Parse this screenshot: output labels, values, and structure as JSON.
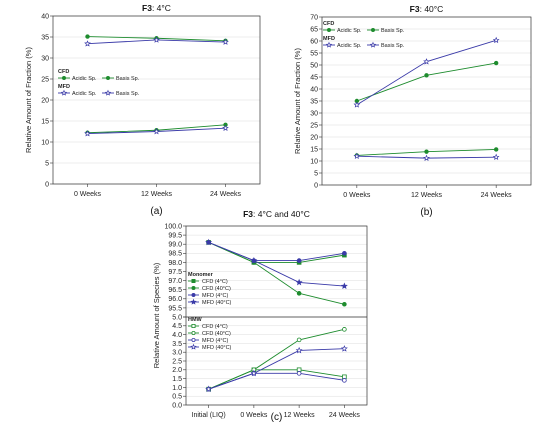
{
  "colors": {
    "green": "#1e8c2e",
    "blue": "#3a3aa8",
    "grid": "#dcdcdc",
    "light": "#aaaaaa"
  },
  "chart_data": [
    {
      "type": "line",
      "panel_label": "(a)",
      "title_bold": "F3",
      "title_rest": ": 4°C",
      "ylabel": "Relative Amount of Fraction (%)",
      "categories": [
        "0 Weeks",
        "12 Weeks",
        "24 Weeks"
      ],
      "ylim": [
        0,
        40
      ],
      "yticks": [
        0,
        5,
        10,
        15,
        20,
        25,
        30,
        35,
        40
      ],
      "grid": true,
      "legend": {
        "placement": "middle-left",
        "groups": [
          {
            "title": "CFD",
            "items": [
              "Acidic Sp.",
              "Basis Sp."
            ],
            "style": "green-filled"
          },
          {
            "title": "MFD",
            "items": [
              "Acidic Sp.",
              "Basis Sp."
            ],
            "style": "blue-open"
          }
        ]
      },
      "series": [
        {
          "group": "CFD",
          "name": "Acidic Sp.",
          "values": [
            12.2,
            12.8,
            14.1
          ],
          "color": "#1e8c2e",
          "marker": "circle",
          "fill": true
        },
        {
          "group": "CFD",
          "name": "Basis Sp.",
          "values": [
            35.1,
            34.7,
            34.1
          ],
          "color": "#1e8c2e",
          "marker": "circle",
          "fill": true
        },
        {
          "group": "MFD",
          "name": "Acidic Sp.",
          "values": [
            12.0,
            12.5,
            13.3
          ],
          "color": "#3a3aa8",
          "marker": "star",
          "fill": false
        },
        {
          "group": "MFD",
          "name": "Basis Sp.",
          "values": [
            33.4,
            34.3,
            33.8
          ],
          "color": "#3a3aa8",
          "marker": "star",
          "fill": false
        }
      ]
    },
    {
      "type": "line",
      "panel_label": "(b)",
      "title_bold": "F3",
      "title_rest": ": 40°C",
      "ylabel": "Relative Amount of Fraction (%)",
      "categories": [
        "0 Weeks",
        "12 Weeks",
        "24 Weeks"
      ],
      "ylim": [
        0,
        70
      ],
      "yticks": [
        0,
        5,
        10,
        15,
        20,
        25,
        30,
        35,
        40,
        45,
        50,
        55,
        60,
        65,
        70
      ],
      "grid": true,
      "legend": {
        "placement": "top-left",
        "groups": [
          {
            "title": "CFD",
            "items": [
              "Acidic Sp.",
              "Basis Sp."
            ],
            "style": "green-filled"
          },
          {
            "title": "MFD",
            "items": [
              "Acidic Sp.",
              "Basis Sp."
            ],
            "style": "blue-open"
          }
        ]
      },
      "series": [
        {
          "group": "CFD",
          "name": "Acidic Sp.",
          "values": [
            12.3,
            13.9,
            14.8
          ],
          "color": "#1e8c2e",
          "marker": "circle",
          "fill": true
        },
        {
          "group": "CFD",
          "name": "Basis Sp.",
          "values": [
            35.0,
            45.7,
            50.8
          ],
          "color": "#1e8c2e",
          "marker": "circle",
          "fill": true
        },
        {
          "group": "MFD",
          "name": "Acidic Sp.",
          "values": [
            12.0,
            11.2,
            11.6
          ],
          "color": "#3a3aa8",
          "marker": "star",
          "fill": false
        },
        {
          "group": "MFD",
          "name": "Basis Sp.",
          "values": [
            33.4,
            51.4,
            60.3
          ],
          "color": "#3a3aa8",
          "marker": "star",
          "fill": false
        }
      ]
    },
    {
      "type": "line",
      "panel_label": "(c)",
      "title_bold": "F3",
      "title_rest": ": 4°C and 40°C",
      "ylabel": "Relative Amount of Species (%)",
      "categories": [
        "Initial (LIQ)",
        "0 Weeks",
        "12 Weeks",
        "24 Weeks"
      ],
      "broken_axis": true,
      "upper": {
        "ylim": [
          95.0,
          100.0
        ],
        "yticks": [
          "95.0",
          "95.5",
          "96.0",
          "96.5",
          "97.0",
          "97.5",
          "98.0",
          "98.5",
          "99.0",
          "99.5",
          "100.0"
        ],
        "legend_title": "Monomer",
        "series": [
          {
            "name": "CFD (4°C)",
            "values": [
              99.1,
              98.0,
              98.0,
              98.4
            ],
            "color": "#1e8c2e",
            "marker": "square",
            "fill": true
          },
          {
            "name": "CFD (40°C)",
            "values": [
              99.1,
              98.0,
              96.3,
              95.7
            ],
            "color": "#1e8c2e",
            "marker": "circle",
            "fill": true
          },
          {
            "name": "MFD (4°C)",
            "values": [
              99.1,
              98.1,
              98.1,
              98.5
            ],
            "color": "#3a3aa8",
            "marker": "circle",
            "fill": true
          },
          {
            "name": "MFD (40°C)",
            "values": [
              99.1,
              98.1,
              96.9,
              96.7
            ],
            "color": "#3a3aa8",
            "marker": "star",
            "fill": true
          }
        ]
      },
      "lower": {
        "ylim": [
          0.0,
          5.0
        ],
        "yticks": [
          "0.0",
          "0.5",
          "1.0",
          "1.5",
          "2.0",
          "2.5",
          "3.0",
          "3.5",
          "4.0",
          "4.5",
          "5.0"
        ],
        "legend_title": "HMW",
        "series": [
          {
            "name": "CFD (4°C)",
            "values": [
              0.9,
              2.0,
              2.0,
              1.6
            ],
            "color": "#1e8c2e",
            "marker": "square",
            "fill": false
          },
          {
            "name": "CFD (40°C)",
            "values": [
              0.9,
              2.0,
              3.7,
              4.3
            ],
            "color": "#1e8c2e",
            "marker": "circle",
            "fill": false
          },
          {
            "name": "MFD (4°C)",
            "values": [
              0.9,
              1.8,
              1.8,
              1.4
            ],
            "color": "#3a3aa8",
            "marker": "circle",
            "fill": false
          },
          {
            "name": "MFD (40°C)",
            "values": [
              0.9,
              1.8,
              3.1,
              3.2
            ],
            "color": "#3a3aa8",
            "marker": "star",
            "fill": false
          }
        ]
      }
    }
  ]
}
